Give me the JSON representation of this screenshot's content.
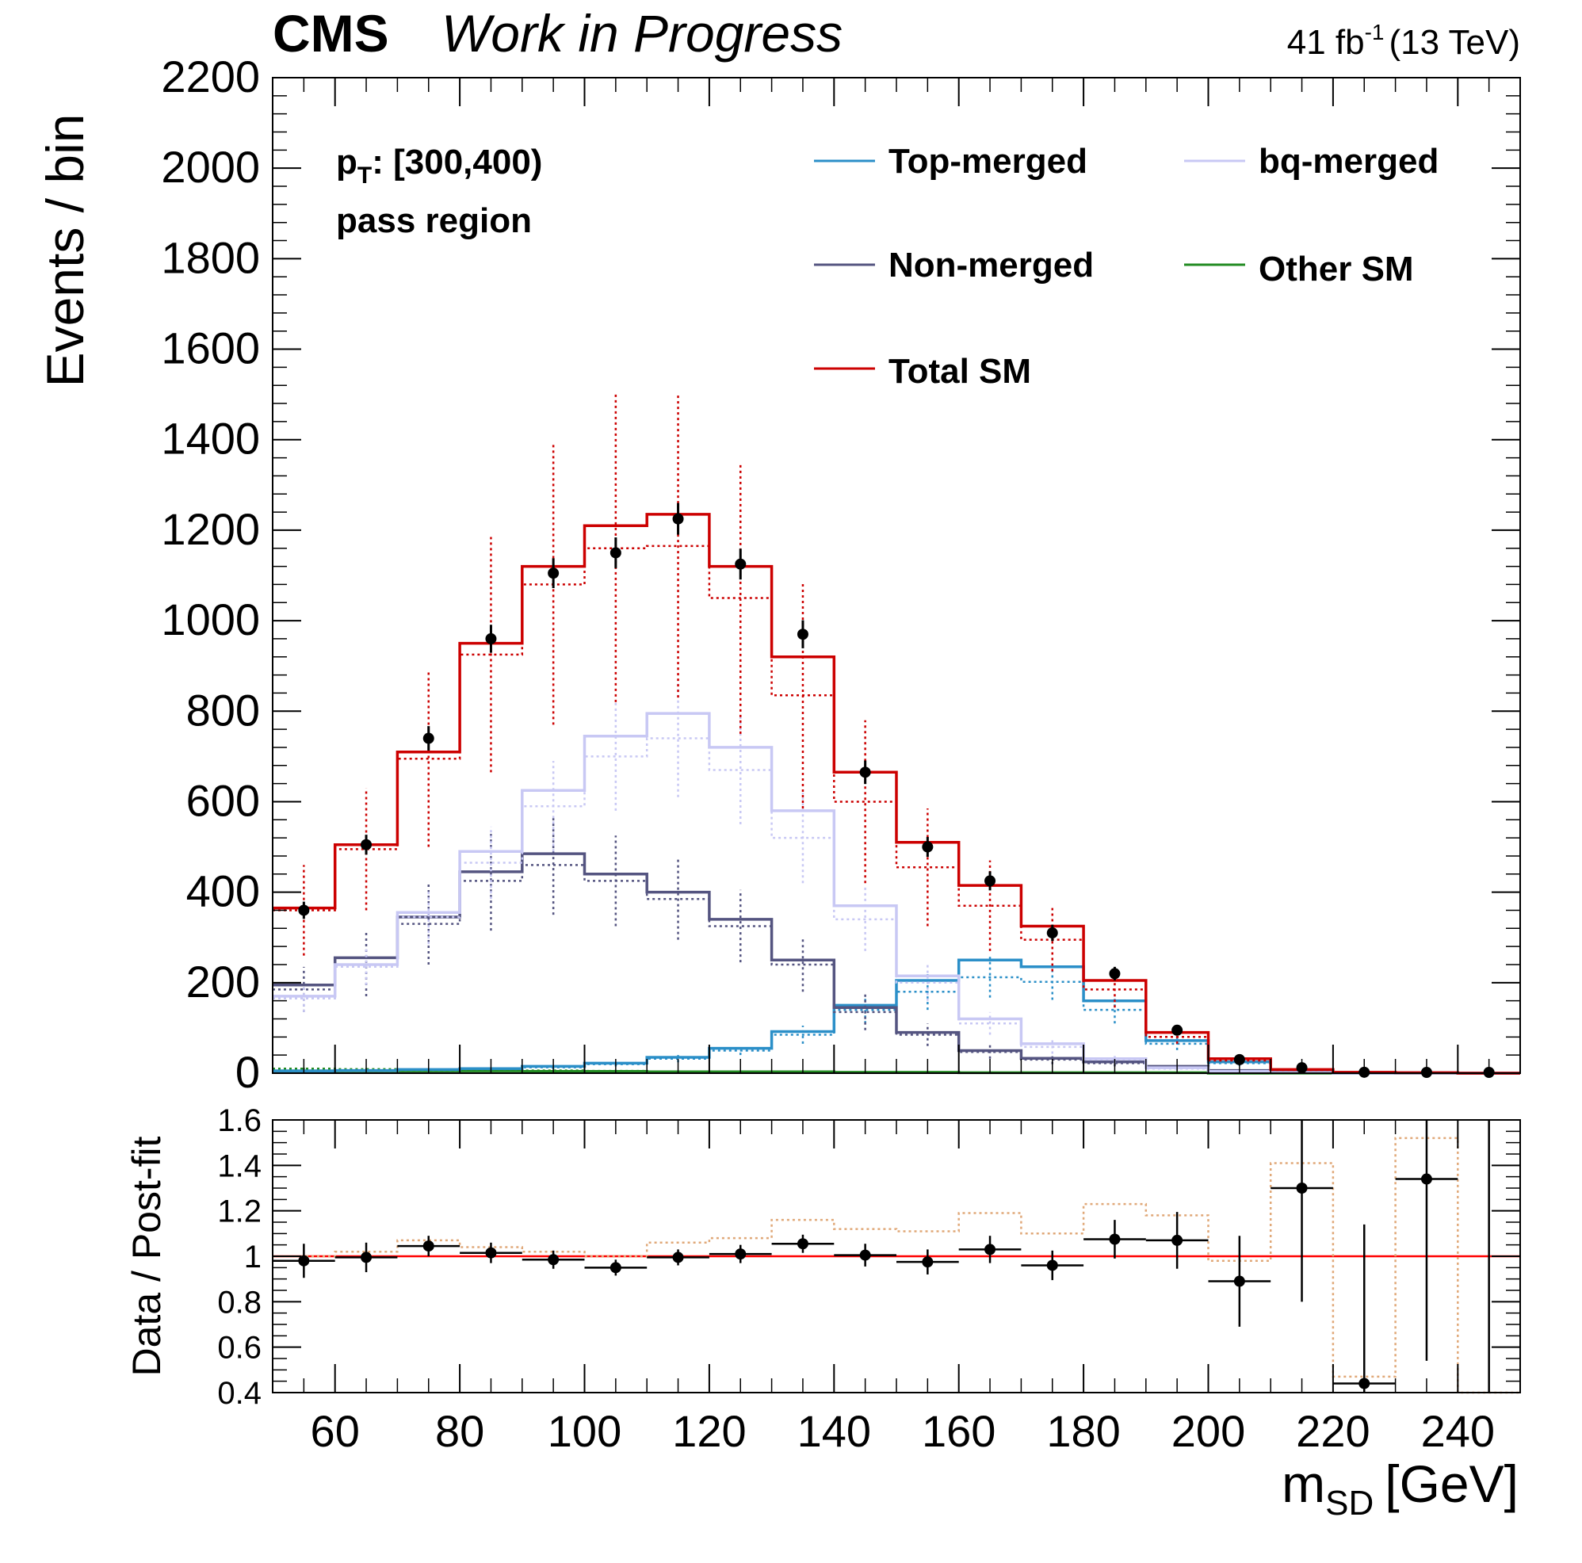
{
  "header": {
    "experiment": "CMS",
    "status": "Work in Progress",
    "lumi_value": "41 fb",
    "lumi_exponent": "-1",
    "energy": "(13 TeV)"
  },
  "annotation": {
    "pt_label": "p",
    "pt_subscript": "T",
    "pt_range": ": [300,400)",
    "region": "pass region"
  },
  "chart_data": [
    {
      "type": "line",
      "panel": "main",
      "ylabel": "Events / bin",
      "xlim": [
        50,
        250
      ],
      "ylim": [
        0,
        2200
      ],
      "yticks": [
        0,
        200,
        400,
        600,
        800,
        1000,
        1200,
        1400,
        1600,
        1800,
        2000,
        2200
      ],
      "bin_edges": [
        50,
        60,
        70,
        80,
        90,
        100,
        110,
        120,
        130,
        140,
        150,
        160,
        170,
        180,
        190,
        200,
        210,
        220,
        230,
        240,
        250
      ],
      "legend": {
        "placement": "top-right",
        "columns": 2
      },
      "series": [
        {
          "name": "Top-merged",
          "color": "#2b8fc8",
          "style": "solid-postfit",
          "postfit": [
            5,
            6,
            8,
            10,
            15,
            22,
            35,
            55,
            92,
            150,
            205,
            250,
            235,
            160,
            72,
            25,
            5,
            2,
            1,
            0
          ],
          "prefit": [
            4,
            5,
            7,
            9,
            13,
            20,
            32,
            50,
            85,
            140,
            180,
            212,
            202,
            140,
            65,
            22,
            4,
            2,
            1,
            0
          ],
          "errors": [
            2,
            2,
            3,
            3,
            4,
            5,
            8,
            10,
            20,
            30,
            40,
            45,
            40,
            30,
            14,
            6,
            2,
            1,
            0,
            0
          ]
        },
        {
          "name": "bq-merged",
          "color": "#c8c8f4",
          "style": "solid-postfit",
          "postfit": [
            170,
            240,
            355,
            490,
            625,
            745,
            795,
            720,
            580,
            370,
            215,
            120,
            65,
            32,
            12,
            4,
            1,
            0,
            0,
            0
          ],
          "prefit": [
            165,
            235,
            345,
            465,
            590,
            700,
            740,
            670,
            520,
            340,
            200,
            110,
            58,
            30,
            10,
            3,
            1,
            0,
            0,
            0
          ],
          "errors": [
            30,
            40,
            60,
            80,
            100,
            120,
            130,
            120,
            100,
            70,
            40,
            25,
            15,
            8,
            3,
            1,
            0,
            0,
            0,
            0
          ]
        },
        {
          "name": "Non-merged",
          "color": "#545480",
          "style": "solid-postfit",
          "postfit": [
            195,
            255,
            345,
            445,
            485,
            440,
            400,
            340,
            250,
            145,
            90,
            50,
            33,
            25,
            15,
            6,
            2,
            0,
            0,
            0
          ],
          "prefit": [
            185,
            240,
            330,
            425,
            460,
            425,
            385,
            325,
            240,
            135,
            85,
            47,
            30,
            22,
            13,
            5,
            2,
            0,
            0,
            0
          ],
          "errors": [
            50,
            70,
            90,
            110,
            110,
            100,
            90,
            80,
            60,
            40,
            25,
            15,
            10,
            7,
            4,
            2,
            1,
            0,
            0,
            0
          ]
        },
        {
          "name": "Other SM",
          "color": "#228b22",
          "style": "solid-postfit",
          "postfit": [
            5,
            5,
            5,
            5,
            4,
            4,
            3,
            3,
            3,
            2,
            2,
            1,
            1,
            1,
            1,
            0,
            0,
            0,
            0,
            0
          ],
          "prefit": [
            10,
            9,
            8,
            7,
            6,
            5,
            4,
            4,
            3,
            2,
            2,
            1,
            1,
            1,
            1,
            0,
            0,
            0,
            0,
            0
          ],
          "errors": [
            2,
            2,
            2,
            2,
            1,
            1,
            1,
            1,
            1,
            1,
            1,
            0,
            0,
            0,
            0,
            0,
            0,
            0,
            0,
            0
          ]
        },
        {
          "name": "Total SM",
          "color": "#cc0000",
          "style": "solid-postfit",
          "postfit": [
            365,
            505,
            710,
            950,
            1120,
            1210,
            1235,
            1120,
            920,
            665,
            510,
            415,
            325,
            205,
            90,
            32,
            8,
            2,
            1,
            0
          ],
          "prefit": [
            360,
            495,
            695,
            925,
            1080,
            1160,
            1165,
            1050,
            835,
            600,
            455,
            370,
            295,
            185,
            80,
            28,
            7,
            2,
            1,
            0
          ],
          "errors": [
            100,
            135,
            195,
            260,
            310,
            340,
            335,
            300,
            250,
            180,
            130,
            100,
            70,
            40,
            15,
            5,
            2,
            0,
            0,
            0
          ]
        }
      ],
      "data": {
        "name": "Data",
        "x": [
          55,
          65,
          75,
          85,
          95,
          105,
          115,
          125,
          135,
          145,
          155,
          165,
          175,
          185,
          195,
          205,
          215,
          225,
          235,
          245
        ],
        "y": [
          360,
          505,
          740,
          960,
          1105,
          1150,
          1225,
          1125,
          970,
          665,
          500,
          425,
          310,
          220,
          95,
          30,
          12,
          2,
          1,
          0
        ],
        "yerr": [
          19,
          22,
          27,
          31,
          33,
          34,
          35,
          34,
          31,
          26,
          22,
          21,
          18,
          15,
          10,
          5,
          3,
          1,
          1,
          1
        ]
      }
    },
    {
      "type": "line",
      "panel": "ratio",
      "xlabel": "m_SD [GeV]",
      "ylabel": "Data / Post-fit",
      "xlim": [
        50,
        250
      ],
      "ylim": [
        0.4,
        1.6
      ],
      "xticks": [
        60,
        80,
        100,
        120,
        140,
        160,
        180,
        200,
        220,
        240
      ],
      "yticks": [
        0.4,
        0.6,
        0.8,
        1,
        1.2,
        1.4,
        1.6
      ],
      "reference_line": {
        "y": 1,
        "color": "#ff0000"
      },
      "prefit_ratio": {
        "color": "#e0a878",
        "values": [
          1.0,
          1.02,
          1.07,
          1.04,
          1.02,
          1.0,
          1.06,
          1.08,
          1.16,
          1.12,
          1.11,
          1.19,
          1.1,
          1.23,
          1.18,
          0.98,
          1.41,
          0.47,
          1.52,
          0.4
        ]
      },
      "data": {
        "x": [
          55,
          65,
          75,
          85,
          95,
          105,
          115,
          125,
          135,
          145,
          155,
          165,
          175,
          185,
          195,
          205,
          215,
          225,
          235,
          245
        ],
        "y": [
          0.98,
          0.995,
          1.045,
          1.015,
          0.985,
          0.95,
          0.995,
          1.01,
          1.055,
          1.005,
          0.975,
          1.03,
          0.96,
          1.075,
          1.07,
          0.89,
          1.3,
          0.44,
          1.34,
          null
        ],
        "yerr": [
          0.075,
          0.065,
          0.045,
          0.045,
          0.04,
          0.035,
          0.035,
          0.04,
          0.04,
          0.05,
          0.055,
          0.06,
          0.065,
          0.085,
          0.125,
          0.2,
          0.5,
          0.7,
          0.8,
          null
        ]
      }
    }
  ]
}
